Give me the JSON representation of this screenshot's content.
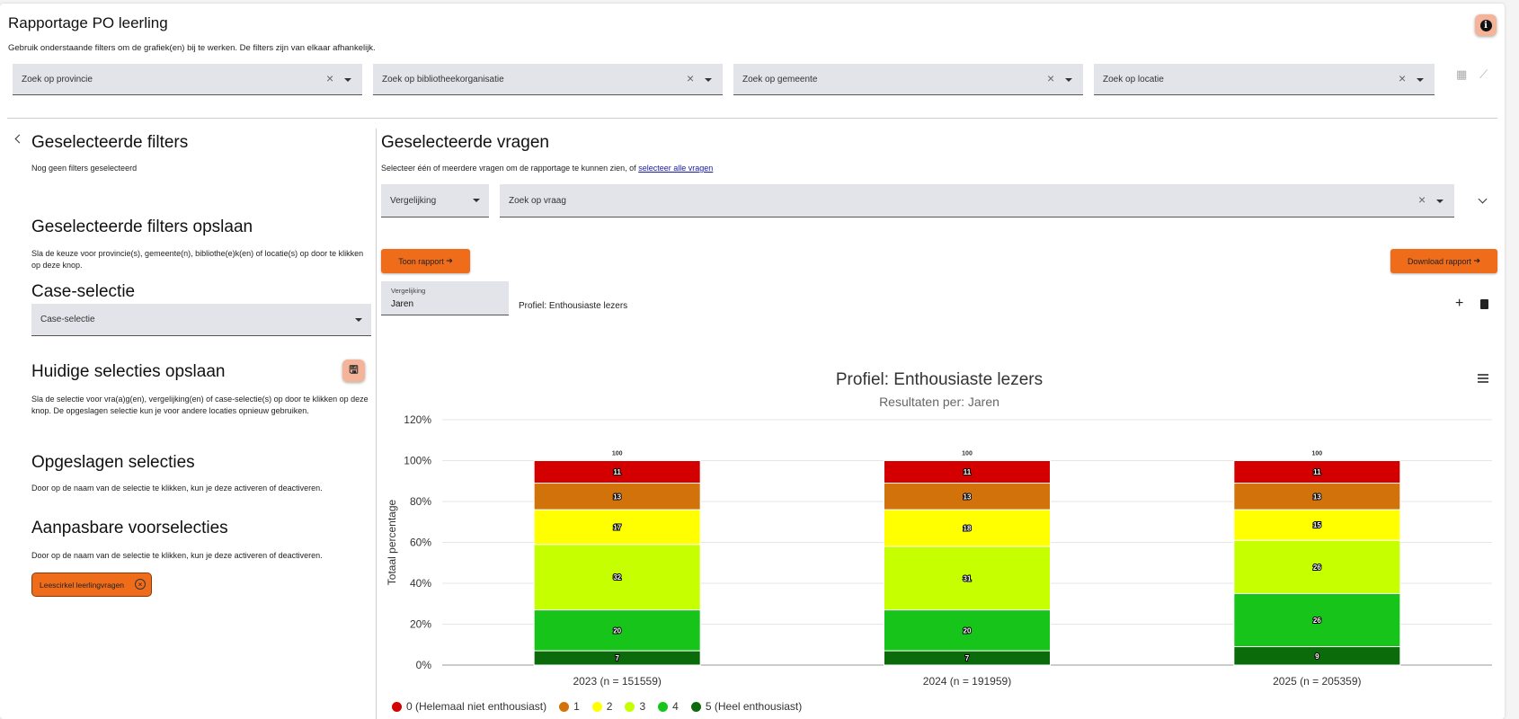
{
  "page": {
    "title": "Rapportage PO leerling",
    "subtitle": "Gebruik onderstaande filters om de grafiek(en) bij te werken. De filters zijn van elkaar afhankelijk."
  },
  "filters": [
    {
      "placeholder": "Zoek op provincie"
    },
    {
      "placeholder": "Zoek op bibliotheekorganisatie"
    },
    {
      "placeholder": "Zoek op gemeente"
    },
    {
      "placeholder": "Zoek op locatie"
    }
  ],
  "sidebar": {
    "selected_filters_title": "Geselecteerde filters",
    "selected_filters_text": "Nog geen filters geselecteerd",
    "save_filters_title": "Geselecteerde filters opslaan",
    "save_filters_text": "Sla de keuze voor provincie(s), gemeente(n), bibliothe(e)k(en) of locatie(s) op door te klikken op deze knop.",
    "case_title": "Case-selectie",
    "case_placeholder": "Case-selectie",
    "current_title": "Huidige selecties opslaan",
    "current_text": "Sla de selectie voor vra(a)g(en), vergelijking(en) of case-selectie(s) op door te klikken op deze knop. De opgeslagen selectie kun je voor andere locaties opnieuw gebruiken.",
    "saved_title": "Opgeslagen selecties",
    "saved_text": "Door op de naam van de selectie te klikken, kun je deze activeren of deactiveren.",
    "preset_title": "Aanpasbare voorselecties",
    "preset_text": "Door op de naam van de selectie te klikken, kun je deze activeren of deactiveren.",
    "preset_chip": "Leescirkel leerlingvragen"
  },
  "main": {
    "title": "Geselecteerde vragen",
    "intro": "Selecteer één of meerdere vragen om de rapportage te kunnen zien, of",
    "intro_link": "selecteer alle vragen",
    "comparison_select": "Vergelijking",
    "question_placeholder": "Zoek op vraag",
    "show_report": "Toon rapport",
    "download_report": "Download rapport",
    "mini_select_label": "Vergelijking",
    "mini_select_value": "Jaren",
    "profile_label": "Profiel: Enthousiaste lezers"
  },
  "chart_data": {
    "type": "bar",
    "stacked": true,
    "title": "Profiel: Enthousiaste lezers",
    "subtitle": "Resultaten per: Jaren",
    "ylabel": "Totaal percentage",
    "ylim": [
      0,
      120
    ],
    "yticks": [
      "0%",
      "20%",
      "40%",
      "60%",
      "80%",
      "100%",
      "120%"
    ],
    "categories": [
      "2023 (n = 151559)",
      "2024 (n = 191959)",
      "2025 (n = 205359)"
    ],
    "totals": [
      100,
      100,
      100
    ],
    "series": [
      {
        "name": "5 (Heel enthousiast)",
        "color": "#0b6b0b",
        "values": [
          7,
          7,
          9
        ]
      },
      {
        "name": "4",
        "color": "#16c41a",
        "values": [
          20,
          20,
          26
        ]
      },
      {
        "name": "3",
        "color": "#c6ff00",
        "values": [
          32,
          31,
          26
        ]
      },
      {
        "name": "2",
        "color": "#ffff00",
        "values": [
          17,
          18,
          15
        ]
      },
      {
        "name": "1",
        "color": "#d2720a",
        "values": [
          13,
          13,
          13
        ]
      },
      {
        "name": "0 (Helemaal niet enthousiast)",
        "color": "#d40000",
        "values": [
          11,
          11,
          11
        ]
      }
    ],
    "legend_order": [
      "0 (Helemaal niet enthousiast)",
      "1",
      "2",
      "3",
      "4",
      "5 (Heel enthousiast)"
    ],
    "legend_placement": "bottom-left",
    "grid": true
  }
}
